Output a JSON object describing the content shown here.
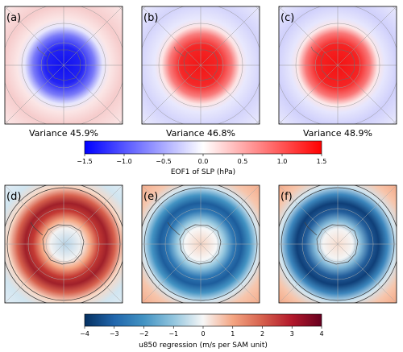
{
  "chart_data": [
    {
      "type": "heatmap",
      "panel": "(a)",
      "title": "",
      "caption": "Variance 45.9%",
      "field": "EOF1 of SLP (hPa)",
      "pattern": "negative polar cap, weak positive mid-latitude ring"
    },
    {
      "type": "heatmap",
      "panel": "(b)",
      "title": "",
      "caption": "Variance 46.8%",
      "field": "EOF1 of SLP (hPa)",
      "pattern": "positive polar cap, weak negative mid-latitude ring"
    },
    {
      "type": "heatmap",
      "panel": "(c)",
      "title": "",
      "caption": "Variance 48.9%",
      "field": "EOF1 of SLP (hPa)",
      "pattern": "positive polar cap, weak negative mid-latitude ring"
    },
    {
      "type": "heatmap",
      "panel": "(d)",
      "title": "",
      "field": "u850 regression (m/s per SAM unit)",
      "pattern": "positive ring around Antarctica"
    },
    {
      "type": "heatmap",
      "panel": "(e)",
      "title": "",
      "field": "u850 regression (m/s per SAM unit)",
      "pattern": "negative ring around Antarctica"
    },
    {
      "type": "heatmap",
      "panel": "(f)",
      "title": "",
      "field": "u850 regression (m/s per SAM unit)",
      "pattern": "negative ring around Antarctica"
    }
  ],
  "colorbars": {
    "slp": {
      "label": "EOF1 of SLP (hPa)",
      "range": [
        -1.5,
        1.5
      ],
      "ticks": [
        "−1.5",
        "−1.0",
        "−0.5",
        "0.0",
        "0.5",
        "1.0",
        "1.5"
      ],
      "colormap": "bwr",
      "colors": [
        "#0000ff",
        "#ffffff",
        "#ff0000"
      ]
    },
    "u850": {
      "label": "u850 regression (m/s per SAM unit)",
      "range": [
        -4,
        4
      ],
      "ticks": [
        "−4",
        "−3",
        "−2",
        "−1",
        "0",
        "1",
        "2",
        "3",
        "4"
      ],
      "colormap": "RdBu_r",
      "colors": [
        "#053061",
        "#2166ac",
        "#4393c3",
        "#92c5de",
        "#f7f7f7",
        "#f4a582",
        "#d6604d",
        "#b2182b",
        "#67001f"
      ]
    }
  }
}
